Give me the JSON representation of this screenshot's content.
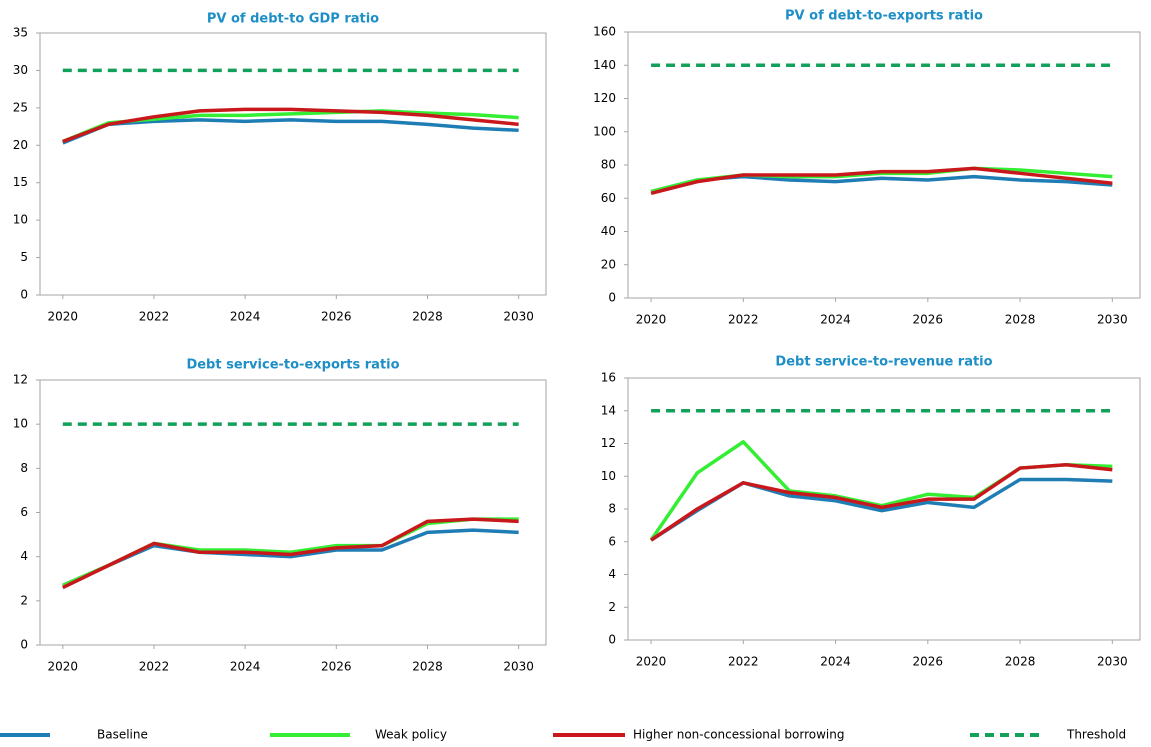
{
  "chart_data": [
    {
      "type": "line",
      "title": "PV of debt-to GDP ratio",
      "x": [
        2020,
        2021,
        2022,
        2023,
        2024,
        2025,
        2026,
        2027,
        2028,
        2029,
        2030
      ],
      "xlim": [
        2019.5,
        2030.6
      ],
      "xticks": [
        2020,
        2022,
        2024,
        2026,
        2028,
        2030
      ],
      "ylim": [
        0,
        35
      ],
      "yticks": [
        0,
        5,
        10,
        15,
        20,
        25,
        30,
        35
      ],
      "series": [
        {
          "name": "Baseline",
          "color": "#1f7db5",
          "values": [
            20.3,
            22.8,
            23.2,
            23.4,
            23.2,
            23.4,
            23.2,
            23.2,
            22.8,
            22.3,
            22.0
          ]
        },
        {
          "name": "Weak policy",
          "color": "#33ee33",
          "values": [
            20.5,
            23.0,
            23.5,
            24.0,
            24.0,
            24.2,
            24.4,
            24.6,
            24.3,
            24.1,
            23.7
          ]
        },
        {
          "name": "Higher non-concessional borrowing",
          "color": "#c8181c",
          "values": [
            20.5,
            22.8,
            23.8,
            24.6,
            24.8,
            24.8,
            24.6,
            24.4,
            24.0,
            23.4,
            22.8
          ]
        },
        {
          "name": "Threshold",
          "color": "#13a05a",
          "dashed": true,
          "values": [
            30,
            30,
            30,
            30,
            30,
            30,
            30,
            30,
            30,
            30,
            30
          ]
        }
      ]
    },
    {
      "type": "line",
      "title": "PV of debt-to-exports  ratio",
      "x": [
        2020,
        2021,
        2022,
        2023,
        2024,
        2025,
        2026,
        2027,
        2028,
        2029,
        2030
      ],
      "xlim": [
        2019.5,
        2030.6
      ],
      "xticks": [
        2020,
        2022,
        2024,
        2026,
        2028,
        2030
      ],
      "ylim": [
        0,
        160
      ],
      "yticks": [
        0,
        20,
        40,
        60,
        80,
        100,
        120,
        140,
        160
      ],
      "series": [
        {
          "name": "Baseline",
          "color": "#1f7db5",
          "values": [
            64,
            71,
            73,
            71,
            70,
            72,
            71,
            73,
            71,
            70,
            68
          ]
        },
        {
          "name": "Weak policy",
          "color": "#33ee33",
          "values": [
            64,
            71,
            74,
            73,
            73,
            75,
            75,
            78,
            77,
            75,
            73
          ]
        },
        {
          "name": "Higher non-concessional borrowing",
          "color": "#c8181c",
          "values": [
            63,
            70,
            74,
            74,
            74,
            76,
            76,
            78,
            75,
            72,
            69
          ]
        },
        {
          "name": "Threshold",
          "color": "#13a05a",
          "dashed": true,
          "values": [
            140,
            140,
            140,
            140,
            140,
            140,
            140,
            140,
            140,
            140,
            140
          ]
        }
      ]
    },
    {
      "type": "line",
      "title": "Debt service-to-exports  ratio",
      "x": [
        2020,
        2021,
        2022,
        2023,
        2024,
        2025,
        2026,
        2027,
        2028,
        2029,
        2030
      ],
      "xlim": [
        2019.5,
        2030.6
      ],
      "xticks": [
        2020,
        2022,
        2024,
        2026,
        2028,
        2030
      ],
      "ylim": [
        0,
        12
      ],
      "yticks": [
        0,
        2,
        4,
        6,
        8,
        10,
        12
      ],
      "series": [
        {
          "name": "Baseline",
          "color": "#1f7db5",
          "values": [
            2.7,
            3.6,
            4.5,
            4.2,
            4.1,
            4.0,
            4.3,
            4.3,
            5.1,
            5.2,
            5.1
          ]
        },
        {
          "name": "Weak policy",
          "color": "#33ee33",
          "values": [
            2.7,
            3.6,
            4.6,
            4.3,
            4.3,
            4.2,
            4.5,
            4.5,
            5.5,
            5.7,
            5.7
          ]
        },
        {
          "name": "Higher non-concessional borrowing",
          "color": "#c8181c",
          "values": [
            2.6,
            3.6,
            4.6,
            4.2,
            4.2,
            4.1,
            4.4,
            4.5,
            5.6,
            5.7,
            5.6
          ]
        },
        {
          "name": "Threshold",
          "color": "#13a05a",
          "dashed": true,
          "values": [
            10,
            10,
            10,
            10,
            10,
            10,
            10,
            10,
            10,
            10,
            10
          ]
        }
      ]
    },
    {
      "type": "line",
      "title": "Debt service-to-revenue  ratio",
      "x": [
        2020,
        2021,
        2022,
        2023,
        2024,
        2025,
        2026,
        2027,
        2028,
        2029,
        2030
      ],
      "xlim": [
        2019.5,
        2030.6
      ],
      "xticks": [
        2020,
        2022,
        2024,
        2026,
        2028,
        2030
      ],
      "ylim": [
        0,
        16
      ],
      "yticks": [
        0,
        2,
        4,
        6,
        8,
        10,
        12,
        14,
        16
      ],
      "series": [
        {
          "name": "Baseline",
          "color": "#1f7db5",
          "values": [
            6.1,
            7.9,
            9.6,
            8.8,
            8.5,
            7.9,
            8.4,
            8.1,
            9.8,
            9.8,
            9.7
          ]
        },
        {
          "name": "Weak policy",
          "color": "#33ee33",
          "values": [
            6.1,
            10.2,
            12.1,
            9.1,
            8.8,
            8.2,
            8.9,
            8.7,
            10.5,
            10.7,
            10.6
          ]
        },
        {
          "name": "Higher non-concessional borrowing",
          "color": "#c8181c",
          "values": [
            6.1,
            8.0,
            9.6,
            9.0,
            8.7,
            8.1,
            8.6,
            8.6,
            10.5,
            10.7,
            10.4
          ]
        },
        {
          "name": "Threshold",
          "color": "#13a05a",
          "dashed": true,
          "values": [
            14,
            14,
            14,
            14,
            14,
            14,
            14,
            14,
            14,
            14,
            14
          ]
        }
      ]
    }
  ]
}
